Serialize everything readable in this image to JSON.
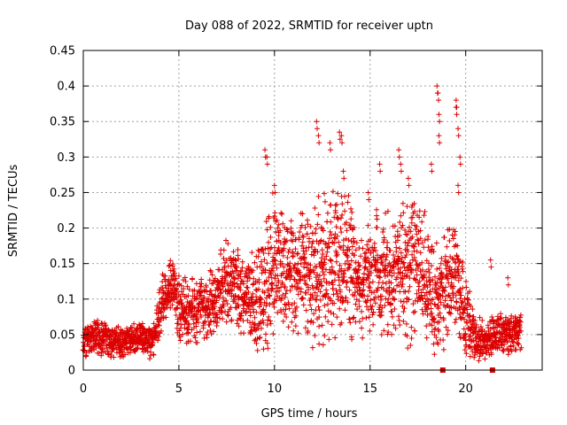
{
  "chart_data": {
    "type": "scatter",
    "title": "Day 088 of 2022, SRMTID for receiver uptn",
    "xlabel": "GPS time / hours",
    "ylabel": "SRMTID / TECUs",
    "xlim": [
      0,
      24
    ],
    "ylim": [
      0,
      0.45
    ],
    "xticks": [
      0,
      5,
      10,
      15,
      20
    ],
    "xtick_labels": [
      "0",
      "5",
      "10",
      "15",
      "20"
    ],
    "yticks": [
      0,
      0.05,
      0.1,
      0.15,
      0.2,
      0.25,
      0.3,
      0.35,
      0.4,
      0.45
    ],
    "ytick_labels": [
      "0",
      "0.05",
      "0.1",
      "0.15",
      "0.2",
      "0.25",
      "0.3",
      "0.35",
      "0.4",
      "0.45"
    ],
    "grid": true,
    "marker_color": "#dd0000",
    "series": [
      {
        "name": "SRMTID",
        "marker": "plus",
        "profile_x": [
          0,
          0.5,
          1,
          1.5,
          2,
          2.5,
          3,
          3.5,
          3.8,
          4.0,
          4.3,
          4.7,
          5,
          5.5,
          6,
          6.5,
          7,
          7.5,
          8,
          8.5,
          9,
          9.5,
          10,
          10.5,
          11,
          11.5,
          12,
          12.5,
          13,
          13.5,
          14,
          14.5,
          15,
          15.5,
          16,
          16.5,
          17,
          17.5,
          18,
          18.5,
          19,
          19.5,
          20,
          20.5,
          21,
          21.5,
          22,
          22.5,
          22.9
        ],
        "profile_y": [
          0.04,
          0.045,
          0.045,
          0.04,
          0.038,
          0.042,
          0.045,
          0.04,
          0.05,
          0.08,
          0.11,
          0.12,
          0.09,
          0.08,
          0.085,
          0.09,
          0.1,
          0.13,
          0.11,
          0.1,
          0.1,
          0.11,
          0.15,
          0.14,
          0.13,
          0.14,
          0.13,
          0.14,
          0.14,
          0.15,
          0.15,
          0.12,
          0.13,
          0.14,
          0.13,
          0.14,
          0.14,
          0.16,
          0.12,
          0.1,
          0.12,
          0.13,
          0.07,
          0.05,
          0.04,
          0.05,
          0.05,
          0.05,
          0.055
        ],
        "spread_y": [
          0.025,
          0.025,
          0.03,
          0.025,
          0.025,
          0.025,
          0.025,
          0.03,
          0.03,
          0.04,
          0.04,
          0.04,
          0.05,
          0.05,
          0.05,
          0.05,
          0.06,
          0.07,
          0.07,
          0.07,
          0.08,
          0.09,
          0.12,
          0.1,
          0.09,
          0.09,
          0.1,
          0.12,
          0.12,
          0.12,
          0.12,
          0.08,
          0.09,
          0.1,
          0.1,
          0.11,
          0.12,
          0.11,
          0.1,
          0.09,
          0.09,
          0.1,
          0.06,
          0.04,
          0.03,
          0.03,
          0.03,
          0.03,
          0.03
        ],
        "spikes": [
          {
            "x": 9.5,
            "y": 0.31
          },
          {
            "x": 9.6,
            "y": 0.3
          },
          {
            "x": 10.0,
            "y": 0.26
          },
          {
            "x": 12.2,
            "y": 0.35
          },
          {
            "x": 12.3,
            "y": 0.33
          },
          {
            "x": 12.9,
            "y": 0.32
          },
          {
            "x": 13.4,
            "y": 0.335
          },
          {
            "x": 13.5,
            "y": 0.33
          },
          {
            "x": 13.6,
            "y": 0.28
          },
          {
            "x": 14.9,
            "y": 0.25
          },
          {
            "x": 15.5,
            "y": 0.29
          },
          {
            "x": 16.5,
            "y": 0.31
          },
          {
            "x": 16.6,
            "y": 0.29
          },
          {
            "x": 17.0,
            "y": 0.27
          },
          {
            "x": 18.2,
            "y": 0.29
          },
          {
            "x": 18.5,
            "y": 0.4
          },
          {
            "x": 18.55,
            "y": 0.39
          },
          {
            "x": 18.6,
            "y": 0.36
          },
          {
            "x": 18.6,
            "y": 0.33
          },
          {
            "x": 19.5,
            "y": 0.38
          },
          {
            "x": 19.5,
            "y": 0.37
          },
          {
            "x": 19.6,
            "y": 0.34
          },
          {
            "x": 19.7,
            "y": 0.3
          },
          {
            "x": 19.6,
            "y": 0.26
          },
          {
            "x": 21.3,
            "y": 0.155
          },
          {
            "x": 22.2,
            "y": 0.13
          }
        ]
      },
      {
        "name": "gaps",
        "marker": "square",
        "x": [
          18.8,
          21.4
        ],
        "y": [
          0,
          0
        ]
      }
    ]
  }
}
